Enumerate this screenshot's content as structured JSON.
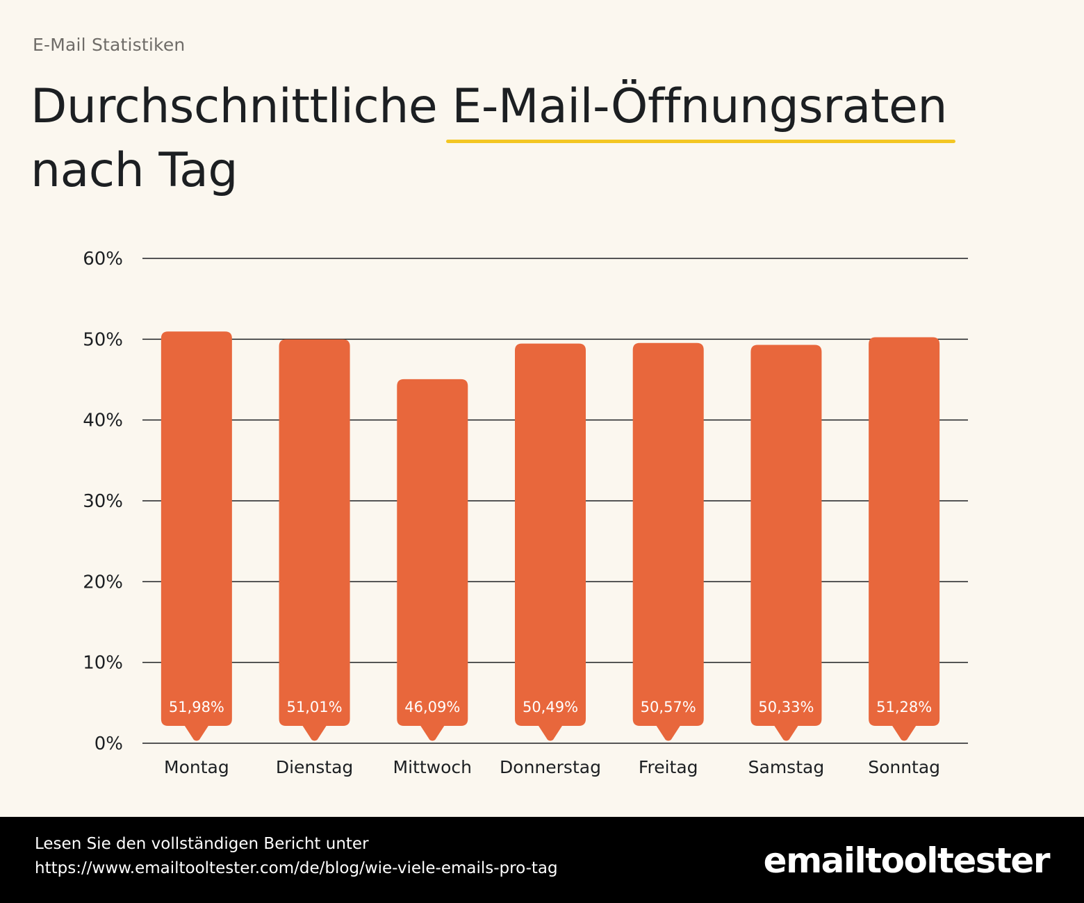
{
  "header": {
    "eyebrow": "E-Mail Statistiken",
    "title_part1": "Durchschnittliche ",
    "title_highlight": "E-Mail-Öffnungsraten",
    "title_part2": "nach Tag"
  },
  "chart_data": {
    "type": "bar",
    "categories": [
      "Montag",
      "Dienstag",
      "Mittwoch",
      "Donnerstag",
      "Freitag",
      "Samstag",
      "Sonntag"
    ],
    "values": [
      51.98,
      51.01,
      46.09,
      50.49,
      50.57,
      50.33,
      51.28
    ],
    "value_labels": [
      "51,98%",
      "51,01%",
      "46,09%",
      "50,49%",
      "50,57%",
      "50,33%",
      "51,28%"
    ],
    "ylim": [
      0,
      60
    ],
    "yticks": [
      0,
      10,
      20,
      30,
      40,
      50,
      60
    ],
    "ytick_labels": [
      "0%",
      "10%",
      "20%",
      "30%",
      "40%",
      "50%",
      "60%"
    ],
    "grid": true,
    "bar_color": "#e8673c",
    "title": "",
    "xlabel": "",
    "ylabel": ""
  },
  "footer": {
    "line1": "Lesen Sie den vollständigen Bericht unter",
    "line2": "https://www.emailtooltester.com/de/blog/wie-viele-emails-pro-tag",
    "logo": "emailtooltester"
  },
  "colors": {
    "background": "#fbf7ef",
    "accent": "#f3c623",
    "bar": "#e8673c",
    "footer": "#000000"
  }
}
